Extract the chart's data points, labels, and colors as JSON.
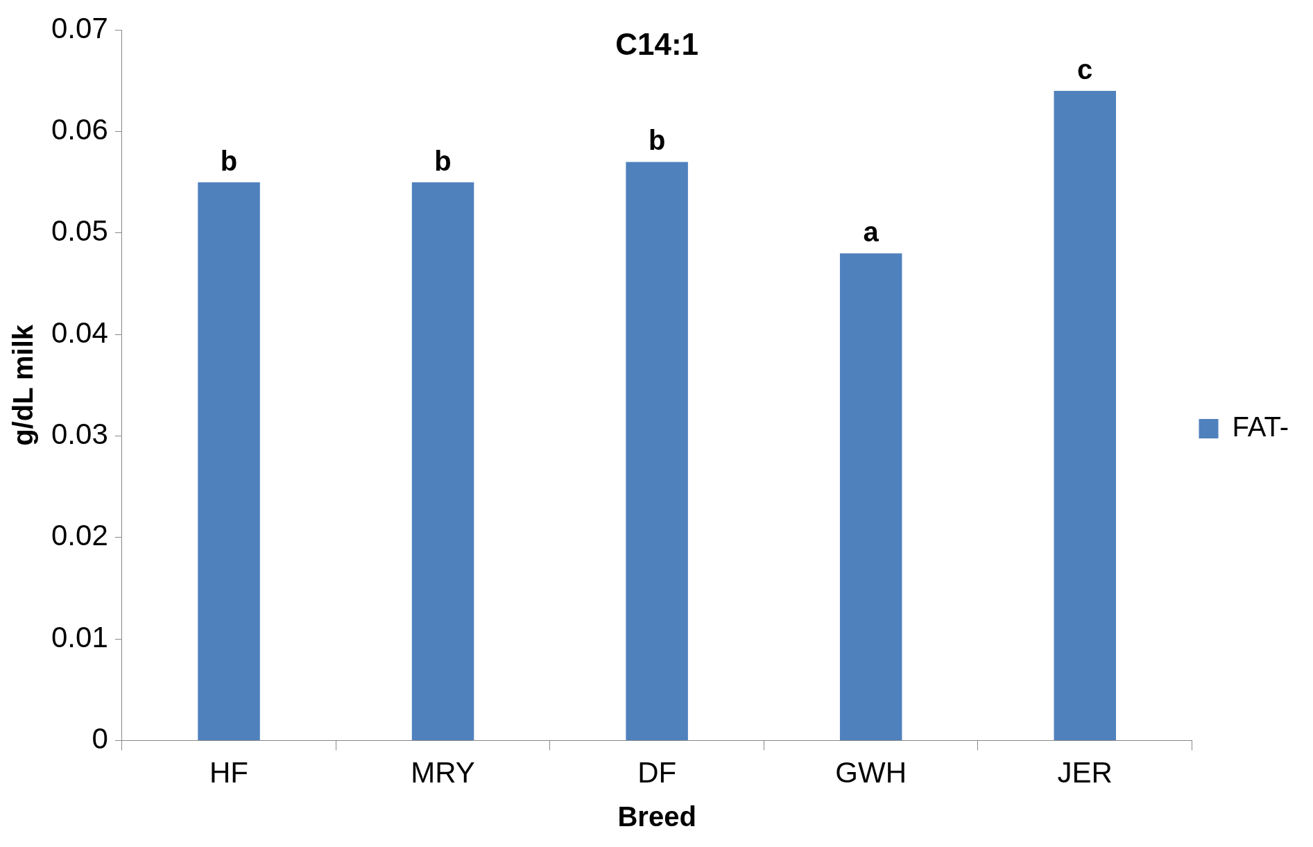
{
  "chart_data": {
    "type": "bar",
    "title": "C14:1",
    "xlabel": "Breed",
    "ylabel": "g/dL milk",
    "categories": [
      "HF",
      "MRY",
      "DF",
      "GWH",
      "JER"
    ],
    "series": [
      {
        "name": "FAT-",
        "color": "#4f81bd",
        "values": [
          0.055,
          0.055,
          0.057,
          0.048,
          0.064
        ]
      }
    ],
    "ylim": [
      0,
      0.07
    ],
    "yticks": [
      0,
      0.01,
      0.02,
      0.03,
      0.04,
      0.05,
      0.06,
      0.07
    ],
    "grid": false,
    "legend": "right",
    "annotations": [
      {
        "text": "b",
        "x": "HF",
        "y": 0.055
      },
      {
        "text": "b",
        "x": "MRY",
        "y": 0.055
      },
      {
        "text": "b",
        "x": "DF",
        "y": 0.057
      },
      {
        "text": "a",
        "x": "GWH",
        "y": 0.048
      },
      {
        "text": "c",
        "x": "JER",
        "y": 0.064
      }
    ]
  }
}
